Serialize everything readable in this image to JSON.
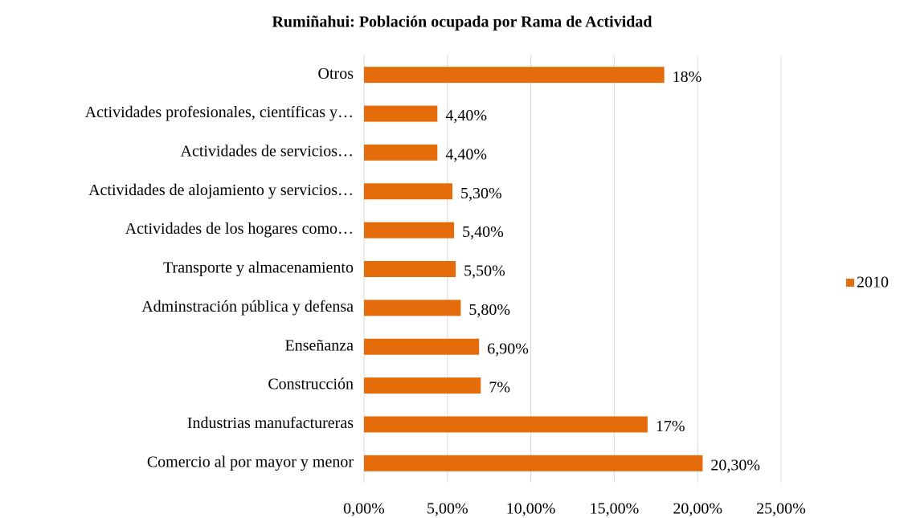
{
  "chart_data": {
    "type": "barh",
    "title": "Rumiñahui: Población ocupada por Rama de Actividad",
    "categories": [
      "Otros",
      "Actividades profesionales, científicas y…",
      "Actividades de servicios…",
      "Actividades de alojamiento y servicios…",
      "Actividades de los hogares como…",
      "Transporte y almacenamiento",
      "Adminstración pública y defensa",
      "Enseñanza",
      "Construcción",
      "Industrias manufactureras",
      "Comercio al por mayor y menor"
    ],
    "series": [
      {
        "name": "2010",
        "color": "#e46c0a",
        "values": [
          18,
          4.4,
          4.4,
          5.3,
          5.4,
          5.5,
          5.8,
          6.9,
          7,
          17,
          20.3
        ],
        "value_labels": [
          "18%",
          "4,40%",
          "4,40%",
          "5,30%",
          "5,40%",
          "5,50%",
          "5,80%",
          "6,90%",
          "7%",
          "17%",
          "20,30%"
        ]
      }
    ],
    "xlim": [
      0,
      25
    ],
    "xticks": [
      {
        "value": 0,
        "label": "0,00%"
      },
      {
        "value": 5,
        "label": "5,00%"
      },
      {
        "value": 10,
        "label": "10,00%"
      },
      {
        "value": 15,
        "label": "15,00%"
      },
      {
        "value": 20,
        "label": "20,00%"
      },
      {
        "value": 25,
        "label": "25,00%"
      }
    ],
    "grid": true,
    "legend": "right"
  }
}
